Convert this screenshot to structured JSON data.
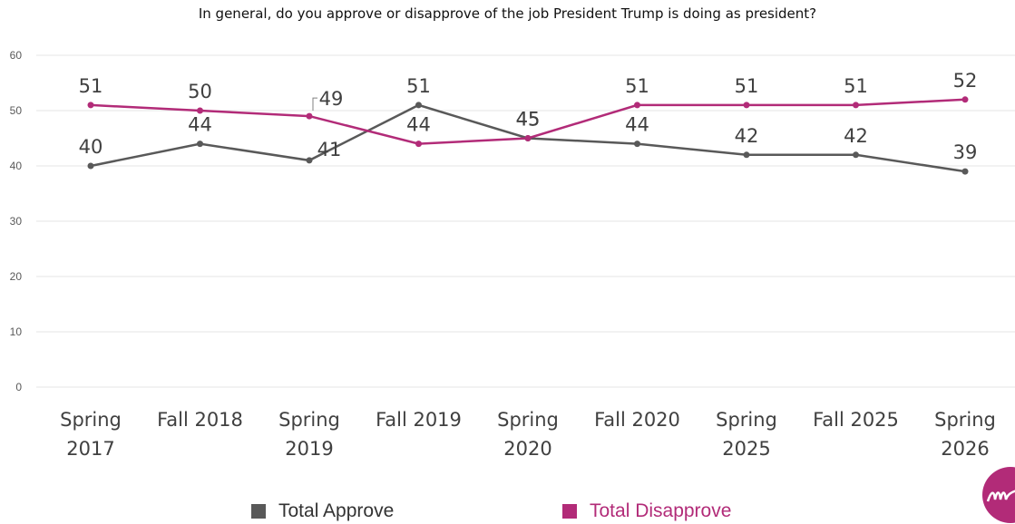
{
  "chart_data": {
    "type": "line",
    "title": "In general, do you approve or disapprove of the job President Trump is doing as president?",
    "categories": [
      [
        "Spring",
        "2017"
      ],
      [
        "Fall 2018"
      ],
      [
        "Spring",
        "2019"
      ],
      [
        "Fall 2019"
      ],
      [
        "Spring",
        "2020"
      ],
      [
        "Fall 2020"
      ],
      [
        "Spring",
        "2025"
      ],
      [
        "Fall 2025"
      ],
      [
        "Spring",
        "2026"
      ]
    ],
    "series": [
      {
        "name": "Total Approve",
        "color": "#595959",
        "values": [
          40,
          44,
          41,
          51,
          45,
          44,
          42,
          42,
          39
        ]
      },
      {
        "name": "Total Disapprove",
        "color": "#b22b78",
        "values": [
          51,
          50,
          49,
          44,
          45,
          51,
          51,
          51,
          52
        ]
      }
    ],
    "ylim": [
      0,
      60
    ],
    "yticks": [
      0,
      10,
      20,
      30,
      40,
      50,
      60
    ],
    "grid": true,
    "legend": "bottom"
  }
}
